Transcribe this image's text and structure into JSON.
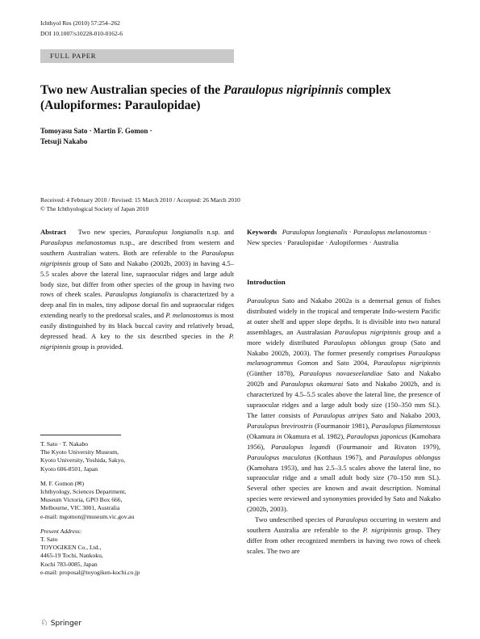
{
  "header": {
    "journal": "Ichthyol Res (2010) 57:254–262",
    "doi": "DOI 10.1007/s10228-010-0162-6",
    "section": "FULL PAPER"
  },
  "title": [
    "Two new Australian species of the ",
    {
      "italic": "Paraulopus nigripinnis"
    },
    " complex (Aulopiformes: Paraulopidae)"
  ],
  "authors": [
    "Tomoyasu Sato · Martin F. Gomon ·",
    "Tetsuji Nakabo"
  ],
  "dates": "Received: 4 February 2010 / Revised: 15 March 2010 / Accepted: 26 March 2010",
  "copyright": "© The Ichthyological Society of Japan 2010",
  "abstract": {
    "label": "Abstract",
    "text": [
      "Two new species, ",
      {
        "italic": "Paraulopus longianalis"
      },
      " n.sp. and ",
      {
        "italic": "Paraulopus melanostomus"
      },
      " n.sp., are described from western and southern Australian waters. Both are referable to the ",
      {
        "italic": "Paraulopus nigripinnis"
      },
      " group of Sato and Nakabo (2002b, 2003) in having 4.5–5.5 scales above the lateral line, supraocular ridges and large adult body size, but differ from other species of the group in having two rows of cheek scales. ",
      {
        "italic": "Paraulopus longianalis"
      },
      " is characterized by a deep anal fin in males, tiny adipose dorsal fin and supraocular ridges extending nearly to the predorsal scales, and ",
      {
        "italic": "P. melanostomus"
      },
      " is most easily distinguished by its black buccal cavity and relatively broad, depressed head. A key to the six described species in the ",
      {
        "italic": "P. nigripinnis"
      },
      " group is provided."
    ]
  },
  "keywords": {
    "label": "Keywords",
    "text": [
      {
        "italic": "Paraulopus longianalis"
      },
      " · ",
      {
        "italic": "Paraulopus melanostomus"
      },
      " · New species · Paraulopidae · Aulopiformes · Australia"
    ]
  },
  "introduction": {
    "heading": "Introduction",
    "paragraphs": [
      [
        {
          "italic": "Paraulopus"
        },
        " Sato and Nakabo 2002a is a demersal genus of fishes distributed widely in the tropical and temperate Indo-western Pacific at outer shelf and upper slope depths. It is divisible into two natural assemblages, an Australasian ",
        {
          "italic": "Paraulopus nigripinnis"
        },
        " group and a more widely distributed ",
        {
          "italic": "Paraulopus oblongus"
        },
        " group (Sato and Nakabo 2002b, 2003). The former presently comprises ",
        {
          "italic": "Paraulopus melanogrammus"
        },
        " Gomon and Sato 2004, ",
        {
          "italic": "Paraulopus nigripinnis"
        },
        " (Günther 1878), ",
        {
          "italic": "Paraulopus novaeseelandiae"
        },
        " Sato and Nakabo 2002b and ",
        {
          "italic": "Paraulopus okamurai"
        },
        " Sato and Nakabo 2002b, and is characterized by 4.5–5.5 scales above the lateral line, the presence of supraocular ridges and a large adult body size (150–350 mm SL). The latter consists of ",
        {
          "italic": "Paraulopus atripes"
        },
        " Sato and Nakabo 2003, ",
        {
          "italic": "Paraulopus brevirostris"
        },
        " (Fourmanoir 1981), ",
        {
          "italic": "Paraulopus filamentosus"
        },
        " (Okamura ",
        {
          "italic": "in"
        },
        " Okamura et al. 1982), ",
        {
          "italic": "Paraulopus japonicus"
        },
        " (Kamohara 1956), ",
        {
          "italic": "Paraulopus legandi"
        },
        " (Fourmanoir and Rivaton 1979), ",
        {
          "italic": "Paraulopus maculatus"
        },
        " (Kotthaus 1967), and ",
        {
          "italic": "Paraulopus oblongus"
        },
        " (Kamohara 1953), and has 2.5–3.5 scales above the lateral line, no supraocular ridge and a small adult body size (70–150 mm SL). Several other species are known and await description. Nominal species were reviewed and synonymies provided by Sato and Nakabo (2002b, 2003)."
      ],
      [
        "Two undescribed species of ",
        {
          "italic": "Paraulopus"
        },
        " occurring in western and southern Australia are referable to the ",
        {
          "italic": "P. nigripinnis"
        },
        " group. They differ from other recognized members in having two rows of cheek scales. The two are"
      ]
    ]
  },
  "affiliations": [
    [
      "T. Sato · T. Nakabo",
      "The Kyoto University Museum,",
      "Kyoto University, Yoshida, Sakyo,",
      "Kyoto 606-8501, Japan"
    ],
    [
      "M. F. Gomon (✉)",
      "Ichthyology, Sciences Department,",
      "Museum Victoria, GPO Box 666,",
      "Melbourne, VIC 3001, Australia",
      "e-mail: mgomon@museum.vic.gov.au"
    ]
  ],
  "present_address": {
    "label": "Present Address:",
    "lines": [
      "T. Sato",
      "TOYOGIKEN Co., Ltd.,",
      "4465-19 Tochi, Nankoku,",
      "Kochi 783-0085, Japan",
      "e-mail: proposal@toyogiken-kochi.co.jp"
    ]
  },
  "footer": "Springer"
}
